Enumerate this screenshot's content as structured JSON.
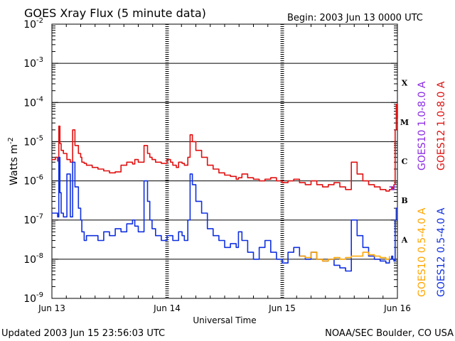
{
  "header": {
    "title": "GOES Xray Flux (5 minute data)",
    "begin": "Begin:  2003 Jun 13 0000 UTC"
  },
  "footer": {
    "updated": "Updated 2003 Jun 15 23:56:03 UTC",
    "credit": "NOAA/SEC Boulder, CO USA"
  },
  "chart_data": {
    "type": "line",
    "title": "GOES Xray Flux (5 minute data)",
    "xlabel": "Universal Time",
    "ylabel": "Watts m",
    "ylabel_superscript": "-2",
    "x_ticks": [
      "Jun 13",
      "Jun 14",
      "Jun 15",
      "Jun 16"
    ],
    "xlim_days": [
      0,
      3
    ],
    "ylim": [
      1e-09,
      0.01
    ],
    "yscale": "log",
    "y_ticks": [
      {
        "base": "10",
        "exp": "-9"
      },
      {
        "base": "10",
        "exp": "-8"
      },
      {
        "base": "10",
        "exp": "-7"
      },
      {
        "base": "10",
        "exp": "-6"
      },
      {
        "base": "10",
        "exp": "-5"
      },
      {
        "base": "10",
        "exp": "-4"
      },
      {
        "base": "10",
        "exp": "-3"
      },
      {
        "base": "10",
        "exp": "-2"
      }
    ],
    "flare_classes": [
      {
        "label": "A",
        "value": 1e-08
      },
      {
        "label": "B",
        "value": 1e-07
      },
      {
        "label": "C",
        "value": 1e-06
      },
      {
        "label": "M",
        "value": 1e-05
      },
      {
        "label": "X",
        "value": 0.0001
      }
    ],
    "grid": "horizontal at each decade",
    "legend": [
      {
        "name": "GOES10 1.0-8.0 A",
        "color": "#8a2be2"
      },
      {
        "name": "GOES12 1.0-8.0 A",
        "color": "#e01010"
      },
      {
        "name": "GOES10 0.5-4.0 A",
        "color": "#ffa500"
      },
      {
        "name": "GOES12 0.5-4.0 A",
        "color": "#1030e0"
      }
    ],
    "series": [
      {
        "name": "GOES12 1.0-8.0 A",
        "color": "#e01010",
        "x": [
          0.0,
          0.03,
          0.05,
          0.06,
          0.07,
          0.08,
          0.1,
          0.13,
          0.16,
          0.18,
          0.2,
          0.23,
          0.25,
          0.26,
          0.28,
          0.3,
          0.35,
          0.4,
          0.45,
          0.5,
          0.55,
          0.6,
          0.65,
          0.7,
          0.72,
          0.75,
          0.8,
          0.83,
          0.85,
          0.87,
          0.9,
          0.95,
          1.0,
          1.03,
          1.05,
          1.08,
          1.1,
          1.13,
          1.15,
          1.18,
          1.2,
          1.22,
          1.25,
          1.3,
          1.35,
          1.4,
          1.45,
          1.5,
          1.55,
          1.6,
          1.62,
          1.65,
          1.7,
          1.75,
          1.8,
          1.85,
          1.9,
          1.95,
          2.0,
          2.05,
          2.1,
          2.15,
          2.2,
          2.25,
          2.3,
          2.35,
          2.4,
          2.45,
          2.5,
          2.55,
          2.6,
          2.65,
          2.7,
          2.75,
          2.8,
          2.85,
          2.9,
          2.93,
          2.95,
          2.96,
          2.97,
          2.98,
          2.99,
          3.0
        ],
        "y": [
          3.5e-06,
          4e-06,
          3.2e-06,
          2.5e-05,
          9e-06,
          6e-06,
          5e-06,
          3.5e-06,
          3e-06,
          2e-05,
          8e-06,
          5e-06,
          4e-06,
          3e-06,
          2.8e-06,
          2.5e-06,
          2.2e-06,
          2e-06,
          1.8e-06,
          1.6e-06,
          1.7e-06,
          2.5e-06,
          3e-06,
          2.7e-06,
          3.5e-06,
          3e-06,
          8e-06,
          5e-06,
          4e-06,
          3.5e-06,
          3e-06,
          2.8e-06,
          3.5e-06,
          3e-06,
          2.5e-06,
          2.2e-06,
          3e-06,
          2.8e-06,
          2.5e-06,
          4e-06,
          1.5e-05,
          1e-05,
          6e-06,
          4e-06,
          2.5e-06,
          2e-06,
          1.6e-06,
          1.4e-06,
          1.3e-06,
          1.1e-06,
          1.2e-06,
          1.5e-06,
          1.2e-06,
          1.1e-06,
          1e-06,
          1.1e-06,
          1.2e-06,
          1e-06,
          9e-07,
          1e-06,
          1.1e-06,
          9e-07,
          8e-07,
          1e-06,
          8e-07,
          7e-07,
          8e-07,
          9e-07,
          7e-07,
          6e-07,
          3e-06,
          1.5e-06,
          1e-06,
          8e-07,
          7e-07,
          6e-07,
          5.5e-07,
          6e-07,
          7e-07,
          6e-07,
          8e-07,
          2e-05,
          9e-05,
          4e-05
        ]
      },
      {
        "name": "GOES12 0.5-4.0 A",
        "color": "#1030e0",
        "x": [
          0.0,
          0.03,
          0.05,
          0.06,
          0.07,
          0.08,
          0.1,
          0.13,
          0.16,
          0.18,
          0.2,
          0.23,
          0.25,
          0.26,
          0.28,
          0.3,
          0.35,
          0.4,
          0.45,
          0.5,
          0.55,
          0.6,
          0.65,
          0.7,
          0.72,
          0.75,
          0.8,
          0.83,
          0.85,
          0.87,
          0.9,
          0.95,
          1.0,
          1.03,
          1.05,
          1.08,
          1.1,
          1.13,
          1.15,
          1.18,
          1.2,
          1.22,
          1.25,
          1.3,
          1.35,
          1.4,
          1.45,
          1.5,
          1.55,
          1.6,
          1.62,
          1.65,
          1.7,
          1.75,
          1.8,
          1.85,
          1.9,
          1.95,
          2.0,
          2.05,
          2.1,
          2.15,
          2.2,
          2.25,
          2.3,
          2.35,
          2.4,
          2.45,
          2.5,
          2.55,
          2.6,
          2.65,
          2.7,
          2.75,
          2.8,
          2.85,
          2.9,
          2.93,
          2.95,
          2.96,
          2.97,
          2.98,
          2.99,
          3.0
        ],
        "y": [
          1.5e-07,
          1.5e-07,
          1.2e-07,
          4e-06,
          5e-07,
          1.5e-07,
          1.2e-07,
          1.5e-06,
          1.2e-07,
          3e-06,
          7e-07,
          2e-07,
          1e-07,
          5e-08,
          3e-08,
          4e-08,
          4e-08,
          3e-08,
          5e-08,
          4e-08,
          6e-08,
          5e-08,
          8e-08,
          1e-07,
          7e-08,
          5e-08,
          1e-06,
          3e-07,
          1e-07,
          6e-08,
          4e-08,
          3e-08,
          4e-08,
          4e-08,
          3e-08,
          3e-08,
          5e-08,
          4e-08,
          3e-08,
          1e-07,
          1.5e-06,
          8e-07,
          3e-07,
          1.5e-07,
          6e-08,
          4e-08,
          3e-08,
          2e-08,
          2.5e-08,
          2e-08,
          5e-08,
          3e-08,
          1.5e-08,
          1e-08,
          2e-08,
          3e-08,
          1.5e-08,
          1e-08,
          8e-09,
          1.5e-08,
          2e-08,
          1.2e-08,
          1e-08,
          1.5e-08,
          1e-08,
          9e-09,
          1e-08,
          7e-09,
          6e-09,
          5e-09,
          1e-07,
          4e-08,
          2e-08,
          1.2e-08,
          1e-08,
          9e-09,
          8e-09,
          1e-08,
          1.2e-08,
          1e-08,
          9e-09,
          1e-07,
          2e-07,
          2e-07
        ]
      },
      {
        "name": "GOES10 0.5-4.0 A",
        "color": "#ffa500",
        "x": [
          2.15,
          2.2,
          2.25,
          2.3,
          2.35,
          2.4,
          2.45,
          2.5,
          2.55,
          2.6,
          2.7,
          2.75,
          2.8,
          2.85,
          2.9,
          2.93
        ],
        "y": [
          1.2e-08,
          1.1e-08,
          1.5e-08,
          1e-08,
          9e-09,
          1e-08,
          1.1e-08,
          1e-08,
          1.1e-08,
          1.2e-08,
          1.5e-08,
          1.3e-08,
          1.2e-08,
          1.1e-08,
          1e-08,
          1.2e-08
        ]
      },
      {
        "name": "GOES10 1.0-8.0 A",
        "color": "#8a2be2",
        "x": [
          2.93,
          2.95,
          2.97
        ],
        "y": [
          7e-07,
          6e-07,
          8e-07
        ]
      }
    ]
  }
}
